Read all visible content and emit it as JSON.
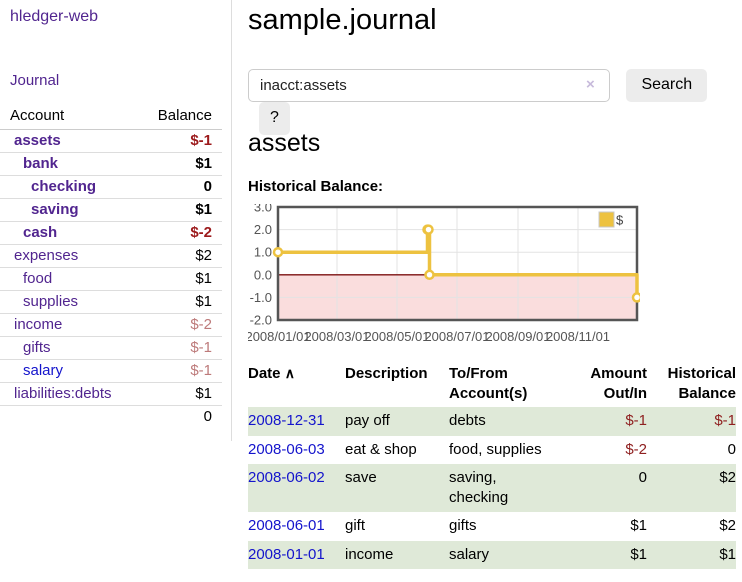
{
  "app": {
    "brand": "hledger-web"
  },
  "sidebar": {
    "journal_link": "Journal",
    "accounts": {
      "header": {
        "account": "Account",
        "balance": "Balance"
      },
      "rows": [
        {
          "name": "assets",
          "balance": "$-1"
        },
        {
          "name": "bank",
          "balance": "$1"
        },
        {
          "name": "checking",
          "balance": "0"
        },
        {
          "name": "saving",
          "balance": "$1"
        },
        {
          "name": "cash",
          "balance": "$-2"
        },
        {
          "name": "expenses",
          "balance": "$2"
        },
        {
          "name": "food",
          "balance": "$1"
        },
        {
          "name": "supplies",
          "balance": "$1"
        },
        {
          "name": "income",
          "balance": "$-2"
        },
        {
          "name": "gifts",
          "balance": "$-1"
        },
        {
          "name": "salary",
          "balance": "$-1"
        },
        {
          "name": "liabilities:debts",
          "balance": "$1"
        }
      ],
      "total": "0"
    }
  },
  "main": {
    "title": "sample.journal",
    "search": {
      "value": "inacct:assets",
      "clear": "×",
      "submit": "Search",
      "help": "?"
    },
    "heading": "assets",
    "chart_label": "Historical Balance:"
  },
  "chart_data": {
    "type": "line",
    "step": true,
    "title": "Historical Balance:",
    "xrange": [
      "2008-01-01",
      "2008-12-31"
    ],
    "ylim": [
      -2,
      3
    ],
    "x_ticks": [
      "2008/01/01",
      "2008/03/01",
      "2008/05/01",
      "2008/07/01",
      "2008/09/01",
      "2008/11/01"
    ],
    "y_ticks": [
      3,
      2,
      1,
      0,
      -1,
      -2
    ],
    "legend": {
      "label": "$",
      "position": "top-right"
    },
    "series": [
      {
        "name": "$",
        "points": [
          {
            "date": "2008-01-01",
            "value": 1
          },
          {
            "date": "2008-06-01",
            "value": 2
          },
          {
            "date": "2008-06-02",
            "value": 2
          },
          {
            "date": "2008-06-03",
            "value": 0
          },
          {
            "date": "2008-12-31",
            "value": -1
          }
        ]
      }
    ],
    "colors": {
      "line": "#edc240",
      "marker_fill": "#ffffff",
      "negative_region": "#fadddd",
      "zero_line": "#7c1010",
      "grid": "#e3e3e3",
      "border": "#555555",
      "axis_text": "#545454",
      "legend_border": "#c8c8c8"
    }
  },
  "register": {
    "headers": {
      "date": "Date",
      "sort_indicator": "∧",
      "description": "Description",
      "accounts": "To/From Account(s)",
      "amount": "Amount Out/In",
      "balance": "Historical Balance"
    },
    "rows": [
      {
        "date": "2008-12-31",
        "description": "pay off",
        "accounts": "debts",
        "amount": "$-1",
        "balance": "$-1"
      },
      {
        "date": "2008-06-03",
        "description": "eat & shop",
        "accounts": "food, supplies",
        "amount": "$-2",
        "balance": "0"
      },
      {
        "date": "2008-06-02",
        "description": "save",
        "accounts": "saving, checking",
        "amount": "0",
        "balance": "$2"
      },
      {
        "date": "2008-06-01",
        "description": "gift",
        "accounts": "gifts",
        "amount": "$1",
        "balance": "$2"
      },
      {
        "date": "2008-01-01",
        "description": "income",
        "accounts": "salary",
        "amount": "$1",
        "balance": "$1"
      }
    ]
  },
  "colors": {
    "link_purple": "#51258f",
    "link_blue": "#1414cc",
    "neg_strong": "#9c1a1c",
    "neg_soft": "#bd7a7a",
    "table_negative": "#8f2020",
    "stripe_green": "#dfe9d8"
  }
}
